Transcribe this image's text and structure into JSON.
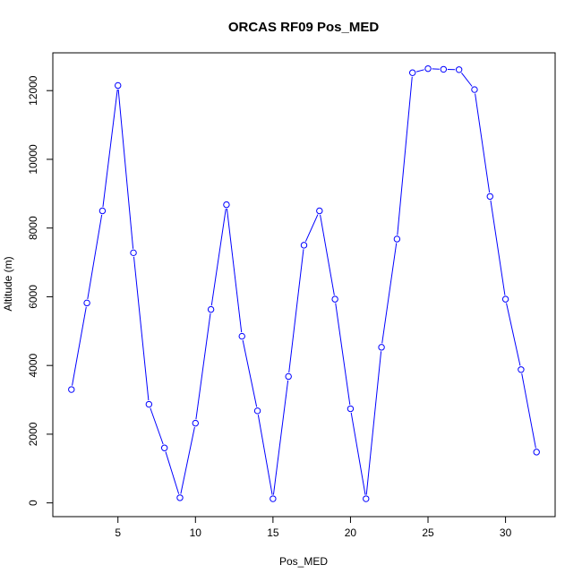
{
  "chart_data": {
    "type": "line",
    "title": "ORCAS RF09 Pos_MED",
    "xlabel": "Pos_MED",
    "ylabel": "Altitude (m)",
    "xlim": [
      0.8,
      33.2
    ],
    "ylim": [
      -400,
      13100
    ],
    "x_ticks": [
      5,
      10,
      15,
      20,
      25,
      30
    ],
    "y_ticks": [
      0,
      2000,
      4000,
      6000,
      8000,
      10000,
      12000
    ],
    "grid": false,
    "series": [
      {
        "color": "#0000ff",
        "marker": "open-circle",
        "x": [
          2,
          3,
          4,
          5,
          6,
          7,
          8,
          9,
          10,
          11,
          12,
          13,
          14,
          15,
          16,
          17,
          18,
          19,
          20,
          21,
          22,
          23,
          24,
          25,
          26,
          27,
          28,
          29,
          30,
          31,
          32
        ],
        "y": [
          3300,
          5820,
          8500,
          12150,
          7280,
          2870,
          1600,
          150,
          2320,
          5630,
          8680,
          4850,
          2680,
          120,
          3680,
          7500,
          8500,
          5930,
          2740,
          120,
          4530,
          7680,
          12520,
          12640,
          12620,
          12610,
          12030,
          8920,
          5930,
          3880,
          1480
        ]
      }
    ]
  }
}
